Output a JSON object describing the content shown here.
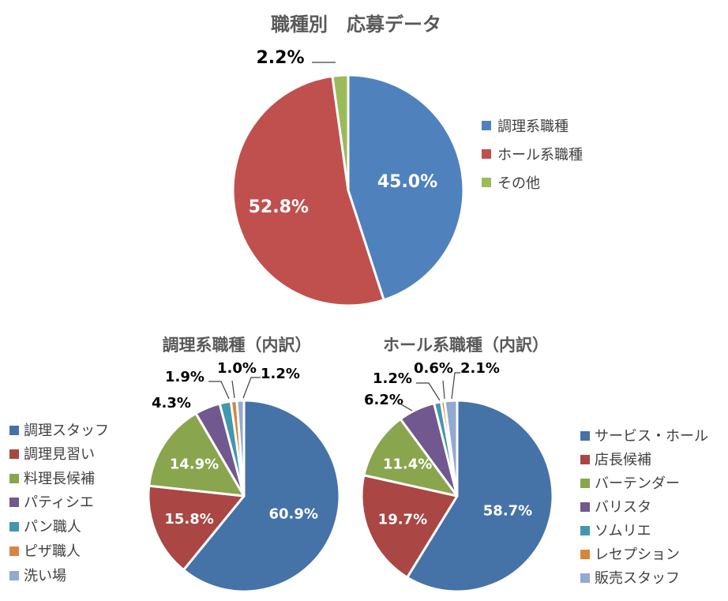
{
  "chart_data": [
    {
      "type": "pie",
      "title": "職種別　応募データ",
      "categories": [
        "調理系職種",
        "ホール系職種",
        "その他"
      ],
      "values": [
        45.0,
        52.8,
        2.2
      ],
      "labels": [
        "45.0%",
        "52.8%",
        "2.2%"
      ],
      "colors": [
        "#4F81BD",
        "#C0504D",
        "#9BBB59"
      ],
      "legend": "right"
    },
    {
      "type": "pie",
      "title": "調理系職種（内訳）",
      "categories": [
        "調理スタッフ",
        "調理見習い",
        "料理長候補",
        "パティシエ",
        "パン職人",
        "ピザ職人",
        "洗い場"
      ],
      "values": [
        60.9,
        15.8,
        14.9,
        4.3,
        1.9,
        1.0,
        1.2
      ],
      "labels": [
        "60.9%",
        "15.8%",
        "14.9%",
        "4.3%",
        "1.9%",
        "1.0%",
        "1.2%"
      ],
      "colors": [
        "#4572A7",
        "#AA4643",
        "#89A54E",
        "#71588F",
        "#4198AF",
        "#DB843D",
        "#93A9CF"
      ],
      "legend": "left"
    },
    {
      "type": "pie",
      "title": "ホール系職種（内訳）",
      "categories": [
        "サービス・ホール",
        "店長候補",
        "バーテンダー",
        "バリスタ",
        "ソムリエ",
        "レセプション",
        "販売スタッフ"
      ],
      "values": [
        58.7,
        19.7,
        11.4,
        6.2,
        1.2,
        0.6,
        2.1
      ],
      "labels": [
        "58.7%",
        "19.7%",
        "11.4%",
        "6.2%",
        "1.2%",
        "0.6%",
        "2.1%"
      ],
      "colors": [
        "#4572A7",
        "#AA4643",
        "#89A54E",
        "#71588F",
        "#4198AF",
        "#DB843D",
        "#93A9CF"
      ],
      "legend": "right"
    }
  ]
}
